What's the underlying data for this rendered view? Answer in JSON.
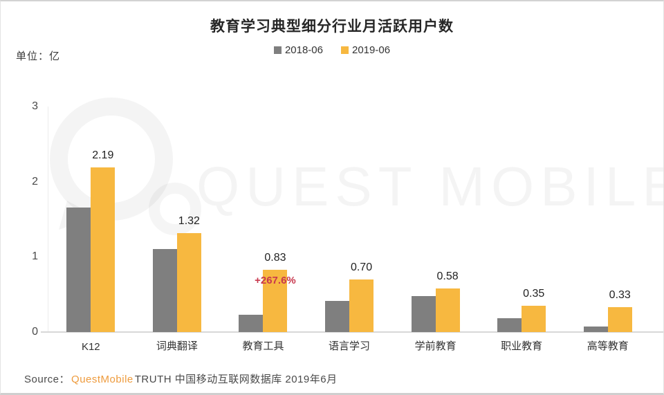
{
  "title": "教育学习典型细分行业月活跃用户数",
  "unit_label": "单位：亿",
  "legend": [
    {
      "label": "2018-06",
      "color": "#7f7f7f"
    },
    {
      "label": "2019-06",
      "color": "#f7b840"
    }
  ],
  "watermark": {
    "text": "QUEST MOBILE"
  },
  "annotation": {
    "text": "+267.6%",
    "category": "教育工具",
    "color": "#c8384e"
  },
  "source": {
    "prefix": "Source：",
    "brand": "QuestMobile",
    "brand_color": "#ee9b3d",
    "rest": "TRUTH 中国移动互联网数据库 2019年6月"
  },
  "chart_data": {
    "type": "bar",
    "categories": [
      "K12",
      "词典翻译",
      "教育工具",
      "语言学习",
      "学前教育",
      "职业教育",
      "高等教育"
    ],
    "series": [
      {
        "name": "2018-06",
        "color": "#7f7f7f",
        "values": [
          1.66,
          1.1,
          0.23,
          0.41,
          0.48,
          0.18,
          0.07
        ]
      },
      {
        "name": "2019-06",
        "color": "#f7b840",
        "values": [
          2.19,
          1.32,
          0.83,
          0.7,
          0.58,
          0.35,
          0.33
        ],
        "labels": [
          "2.19",
          "1.32",
          "0.83",
          "0.70",
          "0.58",
          "0.35",
          "0.33"
        ]
      }
    ],
    "title": "教育学习典型细分行业月活跃用户数",
    "xlabel": "",
    "ylabel": "单位：亿",
    "ylim": [
      0,
      3
    ],
    "yticks": [
      0,
      1,
      2,
      3
    ],
    "grid": false,
    "legend_position": "top",
    "annotations": [
      {
        "category": "教育工具",
        "series": "2019-06",
        "text": "+267.6%"
      }
    ]
  }
}
